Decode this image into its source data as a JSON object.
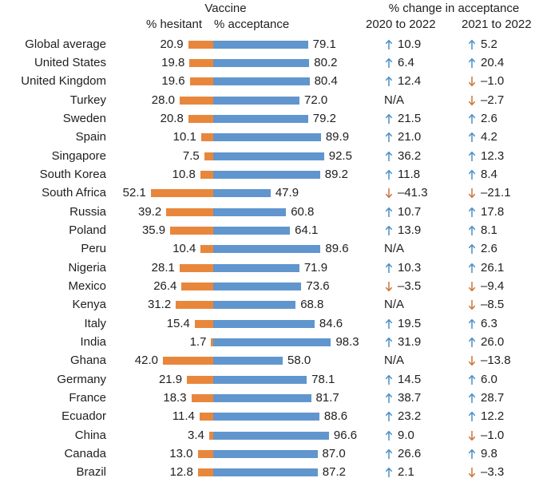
{
  "header": {
    "vaccine_group": "Vaccine",
    "hesitant_col": "% hesitant",
    "acceptance_col": "% acceptance",
    "change_group": "% change in acceptance",
    "change_2020_col": "2020 to 2022",
    "change_2021_col": "2021 to 2022"
  },
  "colors": {
    "hesitant_bar": "#E8873C",
    "acceptance_bar": "#6096CD",
    "up_arrow": "#4A8FC7",
    "down_arrow": "#C8763C",
    "text": "#212121"
  },
  "chart_data": {
    "type": "bar",
    "subtype": "horizontal-stacked-with-change-table",
    "unit": "%",
    "na_label": "N/A",
    "categories": [
      "Global average",
      "United States",
      "United Kingdom",
      "Turkey",
      "Sweden",
      "Spain",
      "Singapore",
      "South Korea",
      "South Africa",
      "Russia",
      "Poland",
      "Peru",
      "Nigeria",
      "Mexico",
      "Kenya",
      "Italy",
      "India",
      "Ghana",
      "Germany",
      "France",
      "Ecuador",
      "China",
      "Canada",
      "Brazil"
    ],
    "series": [
      {
        "name": "% hesitant",
        "values": [
          20.9,
          19.8,
          19.6,
          28.0,
          20.8,
          10.1,
          7.5,
          10.8,
          52.1,
          39.2,
          35.9,
          10.4,
          28.1,
          26.4,
          31.2,
          15.4,
          1.7,
          42.0,
          21.9,
          18.3,
          11.4,
          3.4,
          13.0,
          12.8
        ]
      },
      {
        "name": "% acceptance",
        "values": [
          79.1,
          80.2,
          80.4,
          72.0,
          79.2,
          89.9,
          92.5,
          89.2,
          47.9,
          60.8,
          64.1,
          89.6,
          71.9,
          73.6,
          68.8,
          84.6,
          98.3,
          58.0,
          78.1,
          81.7,
          88.6,
          96.6,
          87.0,
          87.2
        ]
      }
    ],
    "change_2020_to_2022": [
      10.9,
      6.4,
      12.4,
      null,
      21.5,
      21.0,
      36.2,
      11.8,
      -41.3,
      10.7,
      13.9,
      null,
      10.3,
      -3.5,
      null,
      19.5,
      31.9,
      null,
      14.5,
      38.7,
      23.2,
      9.0,
      26.6,
      2.1
    ],
    "change_2021_to_2022": [
      5.2,
      20.4,
      -1.0,
      -2.7,
      2.6,
      4.2,
      12.3,
      8.4,
      -21.1,
      17.8,
      8.1,
      2.6,
      26.1,
      -9.4,
      -8.5,
      6.3,
      26.0,
      -13.8,
      6.0,
      28.7,
      12.2,
      -1.0,
      9.8,
      -3.3
    ]
  }
}
